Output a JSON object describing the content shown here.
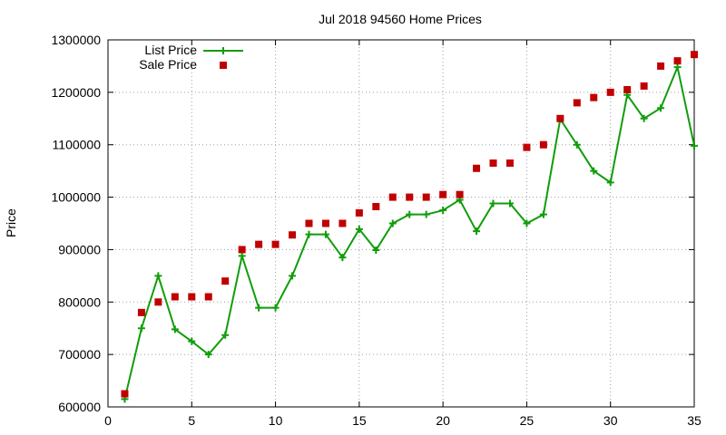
{
  "chart_data": {
    "type": "line",
    "title": "Jul 2018 94560 Home Prices",
    "xlabel": "",
    "ylabel": "Price",
    "xlim": [
      0,
      35
    ],
    "ylim": [
      600000,
      1300000
    ],
    "x_ticks": [
      0,
      5,
      10,
      15,
      20,
      25,
      30,
      35
    ],
    "y_ticks": [
      600000,
      700000,
      800000,
      900000,
      1000000,
      1100000,
      1200000,
      1300000
    ],
    "grid": true,
    "legend_position": "top-left",
    "x": [
      1,
      2,
      3,
      4,
      5,
      6,
      7,
      8,
      9,
      10,
      11,
      12,
      13,
      14,
      15,
      16,
      17,
      18,
      19,
      20,
      21,
      22,
      23,
      24,
      25,
      26,
      27,
      28,
      29,
      30,
      31,
      32,
      33,
      34,
      35
    ],
    "series": [
      {
        "name": "List Price",
        "style": "line-plus",
        "color": "#109d0a",
        "values": [
          615000,
          750000,
          850000,
          748000,
          725000,
          700000,
          737000,
          888000,
          789000,
          789000,
          850000,
          929000,
          929000,
          885000,
          939000,
          899000,
          950000,
          967000,
          967000,
          975000,
          995000,
          935000,
          988000,
          988000,
          950000,
          967000,
          1149000,
          1100000,
          1050000,
          1028000,
          1195000,
          1150000,
          1170000,
          1248000,
          1098000
        ]
      },
      {
        "name": "Sale Price",
        "style": "square",
        "color": "#c00000",
        "values": [
          625000,
          780000,
          800000,
          810000,
          810000,
          810000,
          840000,
          900000,
          910000,
          910000,
          928000,
          950000,
          950000,
          950000,
          970000,
          982000,
          1000000,
          1000000,
          1000000,
          1005000,
          1005000,
          1055000,
          1065000,
          1065000,
          1095000,
          1100000,
          1150000,
          1180000,
          1190000,
          1200000,
          1205000,
          1212000,
          1250000,
          1260000,
          1272000
        ]
      }
    ]
  }
}
